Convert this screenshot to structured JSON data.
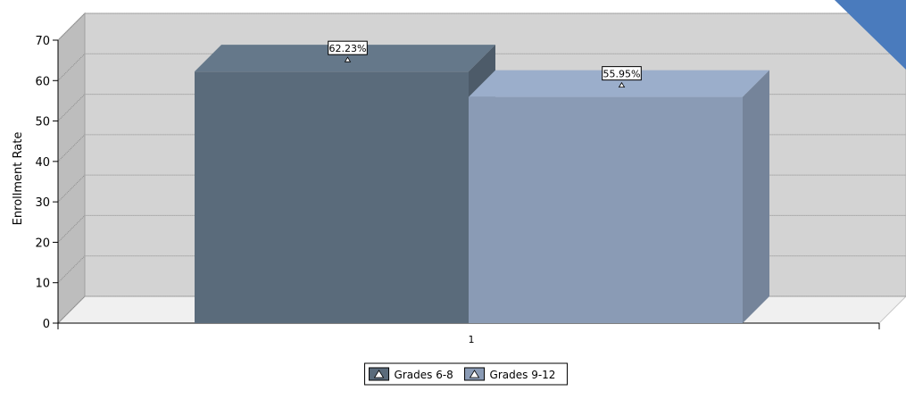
{
  "chart_data": {
    "type": "bar",
    "title": "",
    "xlabel": "",
    "ylabel": "Enrollment Rate",
    "categories": [
      "1"
    ],
    "ylim": [
      0,
      70
    ],
    "yticks": [
      "0",
      "10",
      "20",
      "30",
      "40",
      "50",
      "60",
      "70"
    ],
    "grid": true,
    "legend_position": "bottom",
    "series": [
      {
        "name": "Grades 6-8",
        "values": [
          62.23
        ],
        "data_label": "62.23%",
        "color": "#5a6b7b"
      },
      {
        "name": "Grades 9-12",
        "values": [
          55.95
        ],
        "data_label": "55.95%",
        "color": "#8a9bb5"
      }
    ]
  },
  "colors": {
    "back_wall": "#d3d3d3",
    "floor": "#f0f0f0",
    "corner_accent": "#4a7bbd"
  }
}
